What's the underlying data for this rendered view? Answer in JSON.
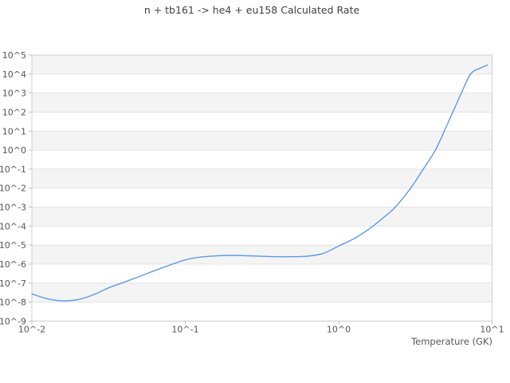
{
  "chart": {
    "title": "n + tb161 -> he4 + eu158 Calculated Rate",
    "xlabel": "Temperature (GK)"
  },
  "chart_data": {
    "type": "line",
    "title": "n + tb161 -> he4 + eu158 Calculated Rate",
    "xlabel": "Temperature (GK)",
    "ylabel": "",
    "x_scale": "log10",
    "y_scale": "log10",
    "xlim_log10": [
      -2,
      1
    ],
    "ylim_log10": [
      -9,
      5
    ],
    "x_ticks_log10": [
      -2,
      -1,
      0,
      1
    ],
    "x_tick_labels": [
      "10^-2",
      "10^-1",
      "10^0",
      "10^1"
    ],
    "y_ticks_log10": [
      5,
      4,
      3,
      2,
      1,
      0,
      -1,
      -2,
      -3,
      -4,
      -5,
      -6,
      -7,
      -8,
      -9
    ],
    "y_tick_labels": [
      "10^5",
      "10^4",
      "10^3",
      "10^2",
      "10^1",
      "10^0",
      "10^-1",
      "10^-2",
      "10^-3",
      "10^-4",
      "10^-5",
      "10^-6",
      "10^-7",
      "10^-8",
      "10^-9"
    ],
    "legend": "none",
    "grid": "horizontal-gridlines-with-alternating-bands",
    "series": [
      {
        "name": "calculated-rate",
        "points_T_GK_vs_rate": [
          [
            0.01,
            2.7e-08
          ],
          [
            0.0126,
            1.5e-08
          ],
          [
            0.0158,
            1.17e-08
          ],
          [
            0.02,
            1.35e-08
          ],
          [
            0.0251,
            2.4e-08
          ],
          [
            0.0316,
            5.6e-08
          ],
          [
            0.0398,
            1.1e-07
          ],
          [
            0.0501,
            2.2e-07
          ],
          [
            0.0631,
            4.5e-07
          ],
          [
            0.0794,
            8.9e-07
          ],
          [
            0.1,
            1.66e-06
          ],
          [
            0.126,
            2.34e-06
          ],
          [
            0.158,
            2.69e-06
          ],
          [
            0.2,
            2.88e-06
          ],
          [
            0.251,
            2.75e-06
          ],
          [
            0.316,
            2.57e-06
          ],
          [
            0.398,
            2.45e-06
          ],
          [
            0.501,
            2.45e-06
          ],
          [
            0.631,
            2.63e-06
          ],
          [
            0.794,
            3.63e-06
          ],
          [
            1.0,
            8.9e-06
          ],
          [
            1.26,
            2.19e-05
          ],
          [
            1.58,
            7.1e-05
          ],
          [
            2.0,
            0.00032
          ],
          [
            2.34,
            0.001
          ],
          [
            2.95,
            0.01
          ],
          [
            3.55,
            0.095
          ],
          [
            4.27,
            1.0
          ],
          [
            5.01,
            15.8
          ],
          [
            5.62,
            126
          ],
          [
            6.31,
            1000.0
          ],
          [
            7.24,
            10000.0
          ],
          [
            8.32,
            20000.0
          ],
          [
            9.33,
            30000.0
          ]
        ]
      }
    ],
    "colors": {
      "line": "#5d9be4",
      "band": "#f4f4f4",
      "gridline": "#e4e4e4",
      "border": "#d0d0d0",
      "tick_mark": "#c0c0c0",
      "tick_text": "#565656",
      "title_text": "#424242"
    }
  }
}
